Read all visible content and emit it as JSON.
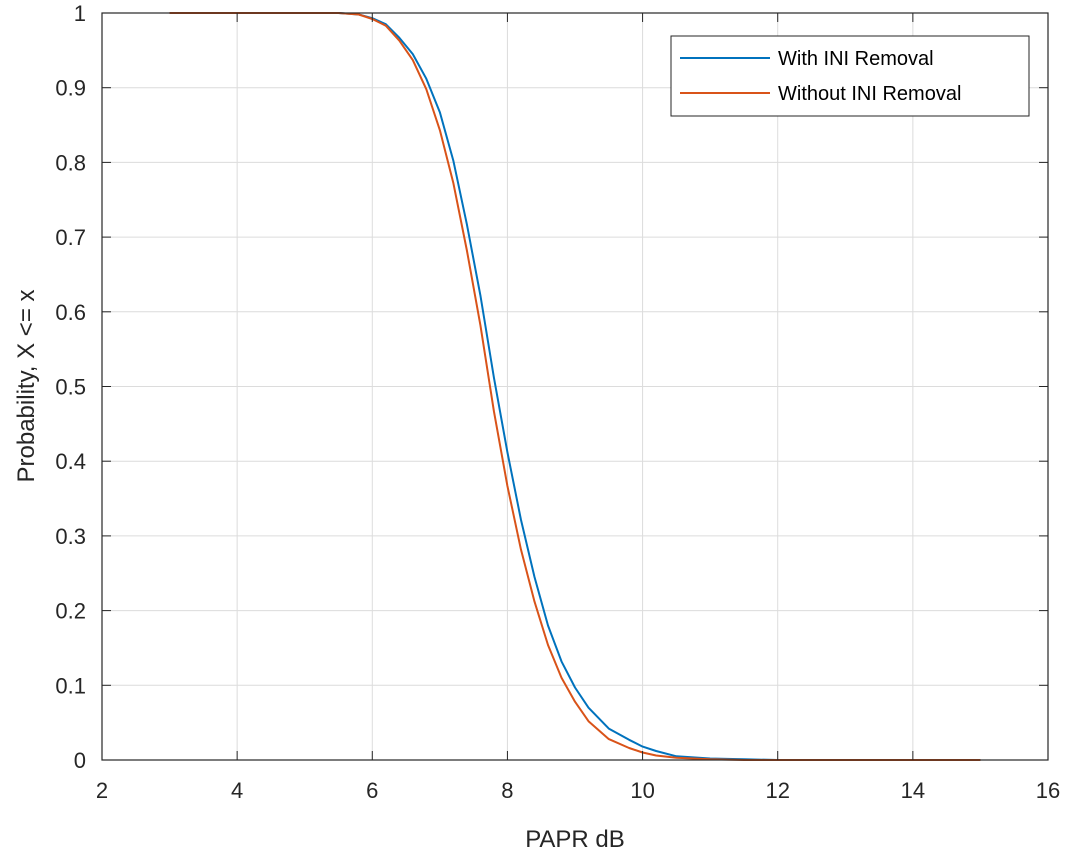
{
  "chart_data": {
    "type": "line",
    "xlabel": "PAPR dB",
    "ylabel": "Probability, X <= x",
    "xlim": [
      2,
      16
    ],
    "ylim": [
      0,
      1
    ],
    "xticks": [
      2,
      4,
      6,
      8,
      10,
      12,
      14,
      16
    ],
    "yticks": [
      0,
      0.1,
      0.2,
      0.3,
      0.4,
      0.5,
      0.6,
      0.7,
      0.8,
      0.9,
      1
    ],
    "xtick_labels": [
      "2",
      "4",
      "6",
      "8",
      "10",
      "12",
      "14",
      "16"
    ],
    "ytick_labels": [
      "0",
      "0.1",
      "0.2",
      "0.3",
      "0.4",
      "0.5",
      "0.6",
      "0.7",
      "0.8",
      "0.9",
      "1"
    ],
    "grid": true,
    "legend_position": "top-right",
    "series": [
      {
        "name": "With INI Removal",
        "color": "#0072bd",
        "x": [
          3,
          4,
          5,
          5.5,
          5.8,
          6.0,
          6.2,
          6.4,
          6.6,
          6.8,
          7.0,
          7.2,
          7.4,
          7.6,
          7.8,
          8.0,
          8.2,
          8.4,
          8.6,
          8.8,
          9.0,
          9.2,
          9.5,
          9.8,
          10.0,
          10.2,
          10.5,
          11.0,
          11.5,
          12.0,
          13.0,
          14.0,
          15.0
        ],
        "y": [
          1,
          1,
          1,
          1,
          0.998,
          0.993,
          0.985,
          0.967,
          0.945,
          0.912,
          0.867,
          0.802,
          0.717,
          0.622,
          0.512,
          0.412,
          0.322,
          0.245,
          0.18,
          0.132,
          0.097,
          0.07,
          0.042,
          0.027,
          0.018,
          0.012,
          0.005,
          0.002,
          0.001,
          0,
          0,
          0,
          0
        ]
      },
      {
        "name": "Without INI Removal",
        "color": "#d95319",
        "x": [
          3,
          4,
          5,
          5.5,
          5.8,
          6.0,
          6.2,
          6.4,
          6.6,
          6.8,
          7.0,
          7.2,
          7.4,
          7.6,
          7.8,
          8.0,
          8.2,
          8.4,
          8.6,
          8.8,
          9.0,
          9.2,
          9.5,
          9.8,
          10.0,
          10.2,
          10.5,
          11.0,
          11.5,
          12.0,
          13.0,
          14.0,
          15.0
        ],
        "y": [
          1,
          1,
          1,
          1,
          0.998,
          0.992,
          0.983,
          0.963,
          0.937,
          0.898,
          0.843,
          0.772,
          0.682,
          0.582,
          0.467,
          0.367,
          0.282,
          0.212,
          0.154,
          0.11,
          0.078,
          0.052,
          0.028,
          0.016,
          0.01,
          0.006,
          0.003,
          0.001,
          0,
          0,
          0,
          0,
          0
        ]
      }
    ]
  }
}
